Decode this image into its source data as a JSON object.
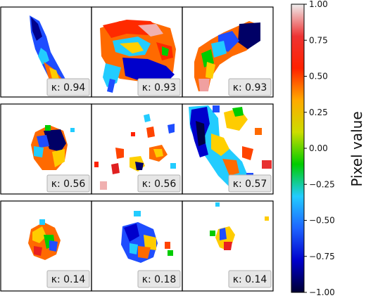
{
  "chart_data": {
    "type": "heatmap",
    "title": "",
    "colorbar": {
      "label": "Pixel value",
      "min": -1.0,
      "max": 1.0,
      "ticks": [
        1.0,
        0.75,
        0.5,
        0.25,
        0.0,
        -0.25,
        -0.5,
        -0.75,
        -1.0
      ],
      "tick_labels": [
        "1.00",
        "0.75",
        "0.50",
        "0.25",
        "0.00",
        "−0.25",
        "−0.50",
        "−0.75",
        "−1.00"
      ],
      "colormap": "jet-like (dark blue → blue → cyan → green → yellow → red → light pink)",
      "colors": [
        "#000033",
        "#0000cc",
        "#1e64ff",
        "#22ccff",
        "#00cc00",
        "#ccdd00",
        "#ffaa00",
        "#ff2200",
        "#ee3333",
        "#eeeeee"
      ]
    },
    "grid": {
      "rows": 3,
      "cols": 3
    },
    "panels": [
      {
        "row": 0,
        "col": 0,
        "kappa_label": "κ: 0.94",
        "kappa": 0.94
      },
      {
        "row": 0,
        "col": 1,
        "kappa_label": "κ: 0.93",
        "kappa": 0.93
      },
      {
        "row": 0,
        "col": 2,
        "kappa_label": "κ: 0.93",
        "kappa": 0.93
      },
      {
        "row": 1,
        "col": 0,
        "kappa_label": "κ: 0.56",
        "kappa": 0.56
      },
      {
        "row": 1,
        "col": 1,
        "kappa_label": "κ: 0.56",
        "kappa": 0.56
      },
      {
        "row": 1,
        "col": 2,
        "kappa_label": "κ: 0.57",
        "kappa": 0.57
      },
      {
        "row": 2,
        "col": 0,
        "kappa_label": "κ: 0.14",
        "kappa": 0.14
      },
      {
        "row": 2,
        "col": 1,
        "kappa_label": "κ: 0.18",
        "kappa": 0.18
      },
      {
        "row": 2,
        "col": 2,
        "kappa_label": "κ: 0.14",
        "kappa": 0.14
      }
    ]
  }
}
